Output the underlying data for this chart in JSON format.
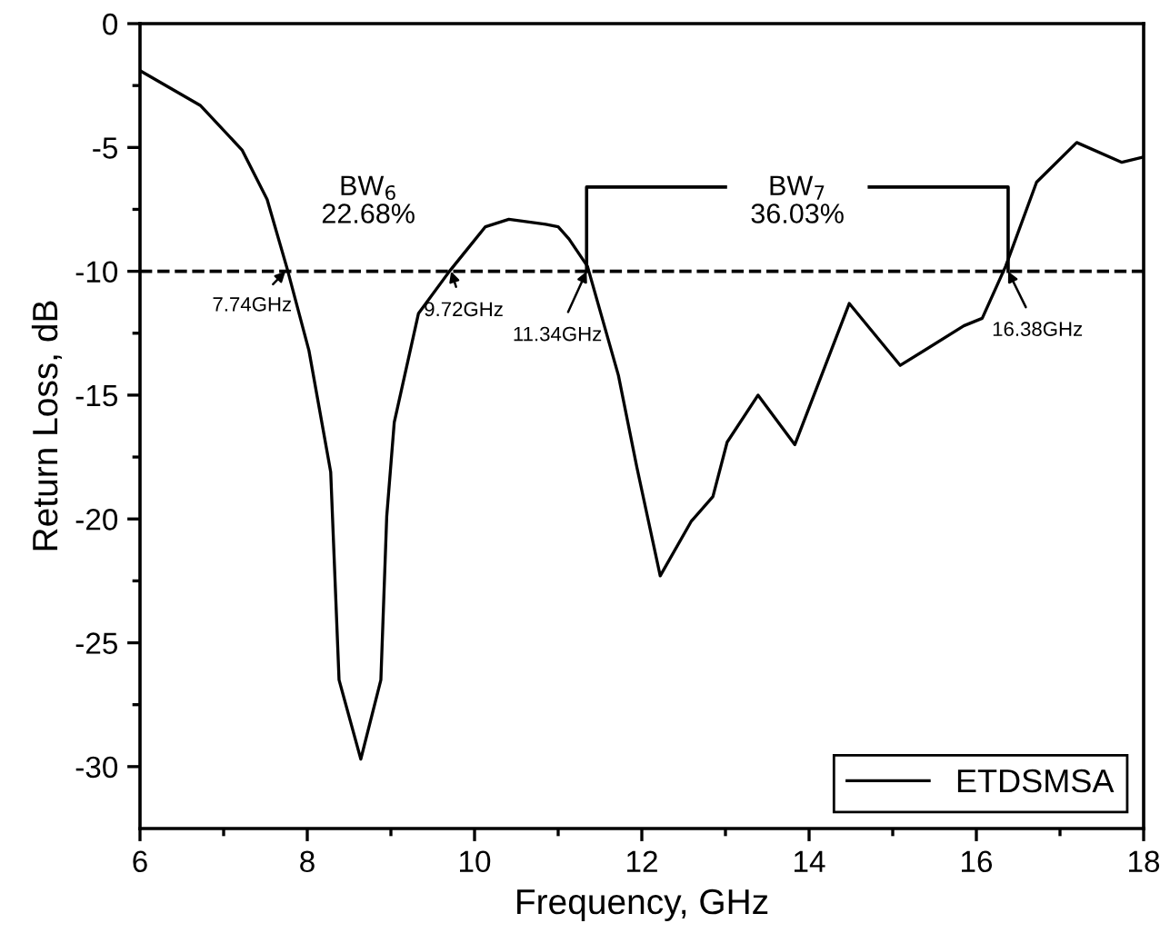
{
  "chart_data": {
    "type": "line",
    "xlabel": "Frequency, GHz",
    "ylabel": "Return Loss, dB",
    "xlim": [
      6,
      18
    ],
    "xticks": [
      6,
      8,
      10,
      12,
      14,
      16,
      18
    ],
    "ylim": [
      -32.5,
      0
    ],
    "yticks": [
      -30,
      -25,
      -20,
      -15,
      -10,
      -5,
      0
    ],
    "series": [
      {
        "name": "ETDSMSA",
        "color": "#000000",
        "x": [
          6.0,
          6.72,
          7.22,
          7.52,
          7.76,
          8.02,
          8.28,
          8.38,
          8.64,
          8.88,
          8.95,
          9.04,
          9.33,
          9.7,
          10.13,
          10.41,
          10.85,
          11.0,
          11.13,
          11.35,
          11.72,
          11.94,
          12.22,
          12.59,
          12.85,
          13.02,
          13.39,
          13.83,
          14.48,
          15.09,
          15.85,
          16.07,
          16.35,
          16.72,
          17.2,
          17.74,
          17.98
        ],
        "values": [
          -1.9,
          -3.3,
          -5.1,
          -7.1,
          -9.9,
          -13.2,
          -18.1,
          -26.5,
          -29.7,
          -26.5,
          -19.9,
          -16.1,
          -11.7,
          -10.0,
          -8.2,
          -7.9,
          -8.1,
          -8.2,
          -8.7,
          -9.8,
          -14.2,
          -17.9,
          -22.3,
          -20.1,
          -19.1,
          -16.9,
          -15.0,
          -17.0,
          -11.3,
          -13.8,
          -12.2,
          -11.9,
          -9.8,
          -6.4,
          -4.8,
          -5.6,
          -5.4
        ]
      }
    ],
    "ref_lines": [
      {
        "axis": "y",
        "value": -10,
        "color": "#000000",
        "line_style": "dashed"
      }
    ],
    "annotations": [
      {
        "text": "7.74GHz",
        "x": 7.74,
        "y": -10
      },
      {
        "text": "9.72GHz",
        "x": 9.72,
        "y": -10
      },
      {
        "text": "11.34GHz",
        "x": 11.34,
        "y": -10
      },
      {
        "text": "16.38GHz",
        "x": 16.38,
        "y": -10
      },
      "BW$_{6}$\n22.68%",
      {
        "text": "BW$_{7}$\n36.03%",
        "x": 13.86,
        "y": -10
      }
    ],
    "legend": "bottom right",
    "grid": false,
    "marker": "none",
    "line_style": "solid"
  }
}
